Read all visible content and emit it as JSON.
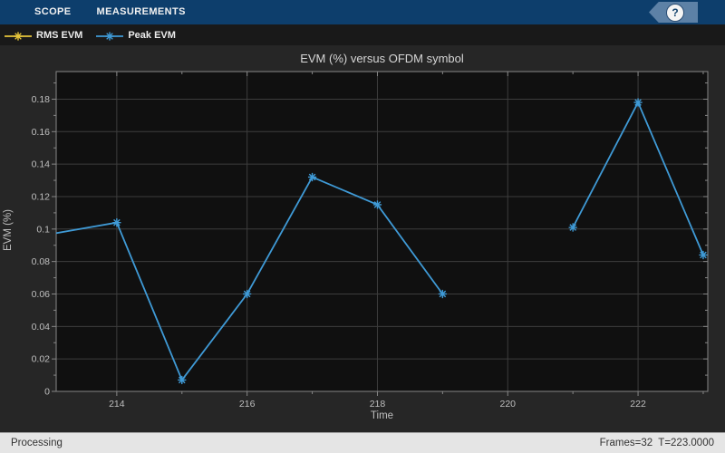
{
  "toolbar": {
    "tabs": [
      {
        "label": "SCOPE"
      },
      {
        "label": "MEASUREMENTS"
      }
    ],
    "help_label": "?"
  },
  "legend": {
    "items": [
      {
        "label": "RMS EVM",
        "color": "#e6c53a"
      },
      {
        "label": "Peak EVM",
        "color": "#3f9ad6"
      }
    ]
  },
  "status_bar": {
    "left": "Processing",
    "right": "Frames=32  T=223.0000"
  },
  "chart_data": {
    "type": "line",
    "title": "EVM (%) versus OFDM symbol",
    "xlabel": "Time",
    "ylabel": "EVM (%)",
    "xlim": [
      213.07,
      223.07
    ],
    "ylim": [
      0,
      0.197
    ],
    "x_ticks": [
      214,
      216,
      218,
      220,
      222
    ],
    "x_minor_step": 1,
    "y_ticks": [
      0,
      0.02,
      0.04,
      0.06,
      0.08,
      0.1,
      0.12,
      0.14,
      0.16,
      0.18
    ],
    "y_minor_step": 0.01,
    "grid": true,
    "legend_position": "top-strip",
    "colors": {
      "plot_bg": "#101010",
      "figure_bg": "#262626",
      "grid": "#3d3d3d",
      "axis": "#878787",
      "tick_label": "#bfbfbf"
    },
    "series": [
      {
        "name": "RMS EVM",
        "color": "#e6c53a",
        "marker": "asterisk",
        "points": []
      },
      {
        "name": "Peak EVM",
        "color": "#3f9ad6",
        "marker": "asterisk",
        "points": [
          [
            213,
            0.097
          ],
          [
            214,
            0.104
          ],
          [
            215,
            0.007
          ],
          [
            216,
            0.06
          ],
          [
            217,
            0.132
          ],
          [
            218,
            0.115
          ],
          [
            219,
            0.06
          ],
          [
            220,
            null
          ],
          [
            221,
            0.101
          ],
          [
            222,
            0.178
          ],
          [
            223,
            0.084
          ]
        ]
      }
    ]
  }
}
